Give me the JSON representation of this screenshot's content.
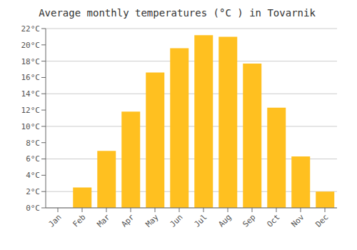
{
  "chart_data": {
    "type": "bar",
    "title": "Average monthly temperatures (°C ) in Tovarnik",
    "categories": [
      "Jan",
      "Feb",
      "Mar",
      "Apr",
      "May",
      "Jun",
      "Jul",
      "Aug",
      "Sep",
      "Oct",
      "Nov",
      "Dec"
    ],
    "values": [
      0,
      2.5,
      7.0,
      11.8,
      16.6,
      19.6,
      21.2,
      21.0,
      17.7,
      12.3,
      6.3,
      2.0
    ],
    "color": "#FFC020",
    "ylim": [
      0,
      22
    ],
    "yticks": [
      {
        "value": 0,
        "label": "0°C"
      },
      {
        "value": 2,
        "label": "2°C"
      },
      {
        "value": 4,
        "label": "4°C"
      },
      {
        "value": 6,
        "label": "6°C"
      },
      {
        "value": 8,
        "label": "8°C"
      },
      {
        "value": 10,
        "label": "10°C"
      },
      {
        "value": 12,
        "label": "12°C"
      },
      {
        "value": 14,
        "label": "14°C"
      },
      {
        "value": 16,
        "label": "16°C"
      },
      {
        "value": 18,
        "label": "18°C"
      },
      {
        "value": 20,
        "label": "20°C"
      },
      {
        "value": 22,
        "label": "22°C"
      }
    ],
    "grid": true
  }
}
